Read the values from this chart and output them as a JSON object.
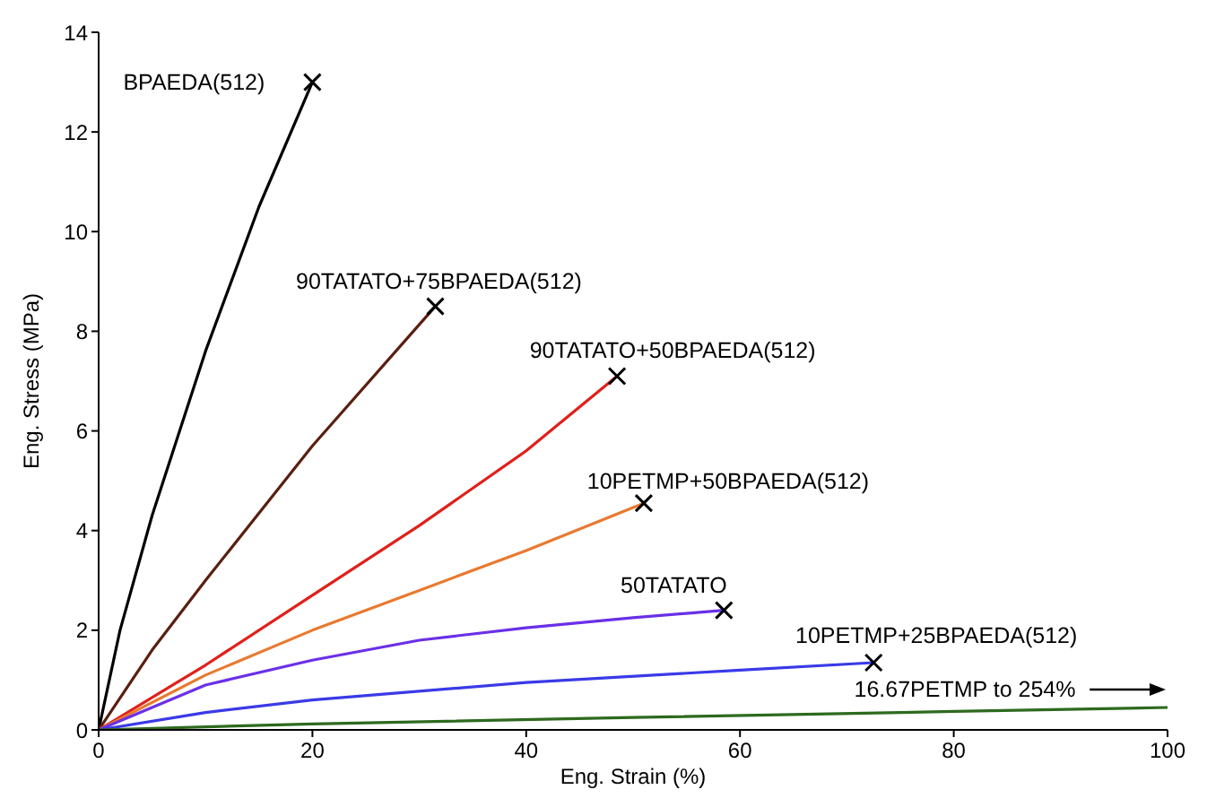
{
  "chart_data": {
    "type": "line",
    "xlabel": "Eng. Strain (%)",
    "ylabel": "Eng. Stress (MPa)",
    "xlim": [
      0,
      100
    ],
    "xticks": [
      0,
      20,
      40,
      60,
      80,
      100
    ],
    "ylim": [
      0,
      14
    ],
    "yticks": [
      0,
      2,
      4,
      6,
      8,
      10,
      12,
      14
    ],
    "grid": false,
    "legend": false,
    "marker": "none",
    "line_style": "solid",
    "series": [
      {
        "color": "#000000",
        "x": [
          0,
          2,
          5,
          10,
          15,
          20
        ],
        "values": [
          0,
          2,
          4.3,
          7.6,
          10.5,
          13
        ]
      },
      {
        "color": "#5a1f10",
        "x": [
          0,
          5,
          10,
          20,
          31.5
        ],
        "values": [
          0,
          1.6,
          3,
          5.7,
          8.5
        ]
      },
      {
        "color": "#e0201a",
        "x": [
          0,
          10,
          20,
          30,
          40,
          48.5
        ],
        "values": [
          0,
          1.3,
          2.7,
          4.1,
          5.6,
          7.1
        ]
      },
      {
        "color": "#e87a30",
        "x": [
          0,
          10,
          20,
          30,
          40,
          51
        ],
        "values": [
          0,
          1.1,
          2,
          2.8,
          3.6,
          4.55
        ]
      },
      {
        "color": "#6a30e8",
        "x": [
          0,
          10,
          20,
          30,
          40,
          50,
          58.5
        ],
        "values": [
          0,
          0.9,
          1.4,
          1.8,
          2.05,
          2.25,
          2.4
        ]
      },
      {
        "color": "#3a3ae8",
        "x": [
          0,
          10,
          20,
          40,
          60,
          72.5
        ],
        "values": [
          0,
          0.35,
          0.6,
          0.95,
          1.2,
          1.35
        ]
      },
      {
        "color": "#2d6a1e",
        "x": [
          0,
          20,
          50,
          80,
          100
        ],
        "values": [
          0,
          0.12,
          0.25,
          0.37,
          0.45
        ]
      },
      {
        "type": "scatter",
        "marker": "cross",
        "color": "#000000",
        "x": [
          20,
          31.5,
          48.5,
          51,
          58.5,
          72.5
        ],
        "values": [
          13,
          8.5,
          7.1,
          4.55,
          2.4,
          1.35
        ]
      }
    ],
    "annotations": [
      {
        "text": "BPAEDA(512)",
        "x": 20,
        "y": 13
      },
      {
        "text": "90TATATO+75BPAEDA(512)",
        "x": 31.5,
        "y": 8.5
      },
      {
        "text": "90TATATO+50BPAEDA(512)",
        "x": 48.5,
        "y": 7.1
      },
      {
        "text": "10PETMP+50BPAEDA(512)",
        "x": 51,
        "y": 4.55
      },
      {
        "text": "50TATATO",
        "x": 58.5,
        "y": 2.4
      },
      {
        "text": "10PETMP+25BPAEDA(512)",
        "x": 72.5,
        "y": 1.35
      },
      "16.67PETMP to 254%"
    ]
  }
}
